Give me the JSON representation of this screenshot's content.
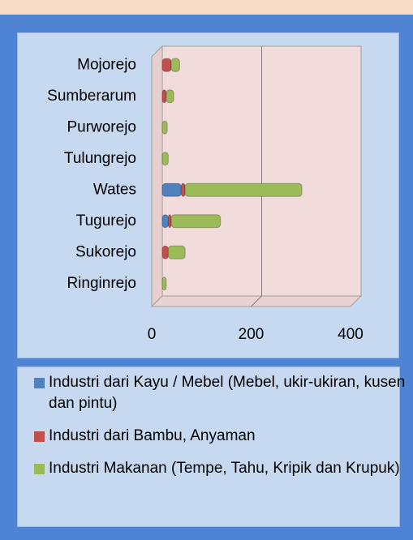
{
  "chart_data": {
    "type": "bar",
    "orientation": "horizontal",
    "stacked": true,
    "categories": [
      "Mojorejo",
      "Sumberarum",
      "Purworejo",
      "Tulungrejo",
      "Wates",
      "Tugurejo",
      "Sukorejo",
      "Ringinrejo"
    ],
    "series": [
      {
        "name": "Industri dari Kayu / Mebel (Mebel, ukir-ukiran, kusen dan pintu)",
        "color": "#4f81bd",
        "values": [
          0,
          0,
          0,
          0,
          38,
          12,
          0,
          0
        ]
      },
      {
        "name": "Industri dari Bambu, Anyaman",
        "color": "#c0504d",
        "values": [
          18,
          8,
          0,
          0,
          8,
          6,
          12,
          0
        ]
      },
      {
        "name": "Industri Makanan (Tempe, Tahu, Kripik dan Krupuk)",
        "color": "#9bbb59",
        "values": [
          17,
          15,
          10,
          12,
          235,
          99,
          34,
          8
        ]
      }
    ],
    "xlim": [
      0,
      400
    ],
    "xticks": [
      0,
      200,
      400
    ],
    "grid": true,
    "legend": "bottom"
  }
}
